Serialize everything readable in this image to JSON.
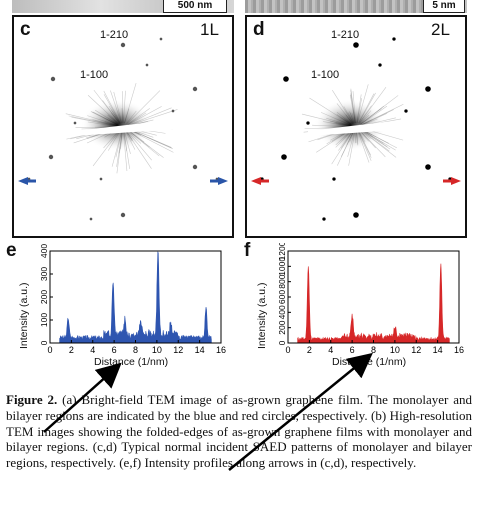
{
  "top_strip": {
    "a_scalebar": "500 nm",
    "b_scalebar": "5 nm"
  },
  "panels": {
    "c": {
      "label": "c",
      "layers": "1L",
      "index_top": "1-210",
      "index_mid": "1-100",
      "arrow_color": "#2a55a8"
    },
    "d": {
      "label": "d",
      "layers": "2L",
      "index_top": "1-210",
      "index_mid": "1-100",
      "arrow_color": "#d62728"
    }
  },
  "chart_data": [
    {
      "type": "line",
      "panel": "e",
      "color": "#2e55b0",
      "xlabel": "Distance (1/nm)",
      "ylabel": "Intensity (a.u.)",
      "xlim": [
        0,
        16
      ],
      "ylim": [
        0,
        400
      ],
      "xticks": [
        0,
        2,
        4,
        6,
        8,
        10,
        12,
        14,
        16
      ],
      "yticks": [
        0,
        100,
        200,
        300,
        400
      ],
      "baseline": 22,
      "peaks": [
        {
          "x": 1.7,
          "y": 110
        },
        {
          "x": 5.9,
          "y": 270
        },
        {
          "x": 7.0,
          "y": 90
        },
        {
          "x": 8.5,
          "y": 85
        },
        {
          "x": 10.1,
          "y": 390
        },
        {
          "x": 11.3,
          "y": 75
        },
        {
          "x": 14.6,
          "y": 150
        }
      ]
    },
    {
      "type": "line",
      "panel": "f",
      "color": "#d62728",
      "xlabel": "Distance (1/nm)",
      "ylabel": "Intensity (a.u.)",
      "xlim": [
        0,
        16
      ],
      "ylim": [
        0,
        1200
      ],
      "xticks": [
        0,
        2,
        4,
        6,
        8,
        10,
        12,
        14,
        16
      ],
      "yticks": [
        0,
        200,
        400,
        600,
        800,
        1000,
        1200
      ],
      "baseline": 50,
      "peaks": [
        {
          "x": 1.9,
          "y": 1000
        },
        {
          "x": 6.0,
          "y": 330
        },
        {
          "x": 10.0,
          "y": 180
        },
        {
          "x": 14.3,
          "y": 1050
        }
      ]
    }
  ],
  "caption": {
    "lead": "Figure 2.",
    "text": " (a) Bright-field TEM image of as-grown graphene film. The monolayer and bilayer regions are indicated by the blue and red circles, respectively. (b) High-resolution TEM images showing the folded-edges of as-grown graphene films with monolayer and bilayer regions. (c,d) Typical normal incident SAED patterns of monolayer and bilayer regions, respectively. (e,f) Intensity profiles along arrows in (c,d), respectively."
  }
}
